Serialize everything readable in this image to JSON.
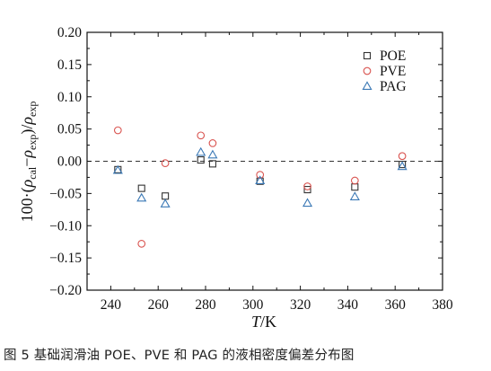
{
  "caption": "图 5   基础润滑油 POE、PVE 和 PAG 的液相密度偏差分布图",
  "chart_data": {
    "type": "scatter",
    "xlabel_italic": "T",
    "xlabel_rest": "/K",
    "ylabel": {
      "prefix": "100·(",
      "rho1": "ρ",
      "sub1": "cal",
      "dash": "−",
      "rho2": "ρ",
      "sub2": "exp",
      "mid": ")/",
      "rho3": "ρ",
      "sub3": "exp"
    },
    "xlim": [
      230,
      380
    ],
    "ylim": [
      -0.2,
      0.2
    ],
    "x_ticks": [
      "240",
      "260",
      "280",
      "300",
      "320",
      "340",
      "360",
      "380"
    ],
    "y_ticks": [
      "0.20",
      "0.15",
      "0.10",
      "0.05",
      "0.00",
      "−0.05",
      "−0.10",
      "−0.15",
      "−0.20"
    ],
    "reference_line_y": 0,
    "legend_position": "top-right",
    "series": [
      {
        "name": "POE",
        "marker": "square",
        "color": "#333333",
        "points": [
          [
            243,
            -0.013
          ],
          [
            253,
            -0.042
          ],
          [
            263,
            -0.054
          ],
          [
            278,
            0.002
          ],
          [
            283,
            -0.004
          ],
          [
            303,
            -0.031
          ],
          [
            323,
            -0.044
          ],
          [
            343,
            -0.04
          ],
          [
            363,
            -0.005
          ]
        ]
      },
      {
        "name": "PVE",
        "marker": "circle",
        "color": "#d9534f",
        "points": [
          [
            243,
            0.048
          ],
          [
            253,
            -0.128
          ],
          [
            263,
            -0.003
          ],
          [
            278,
            0.04
          ],
          [
            283,
            0.028
          ],
          [
            303,
            -0.021
          ],
          [
            323,
            -0.039
          ],
          [
            343,
            -0.03
          ],
          [
            363,
            0.008
          ]
        ]
      },
      {
        "name": "PAG",
        "marker": "triangle",
        "color": "#3a78b5",
        "points": [
          [
            243,
            -0.014
          ],
          [
            253,
            -0.057
          ],
          [
            263,
            -0.066
          ],
          [
            278,
            0.014
          ],
          [
            283,
            0.01
          ],
          [
            303,
            -0.03
          ],
          [
            323,
            -0.065
          ],
          [
            343,
            -0.055
          ],
          [
            363,
            -0.008
          ]
        ]
      }
    ]
  }
}
